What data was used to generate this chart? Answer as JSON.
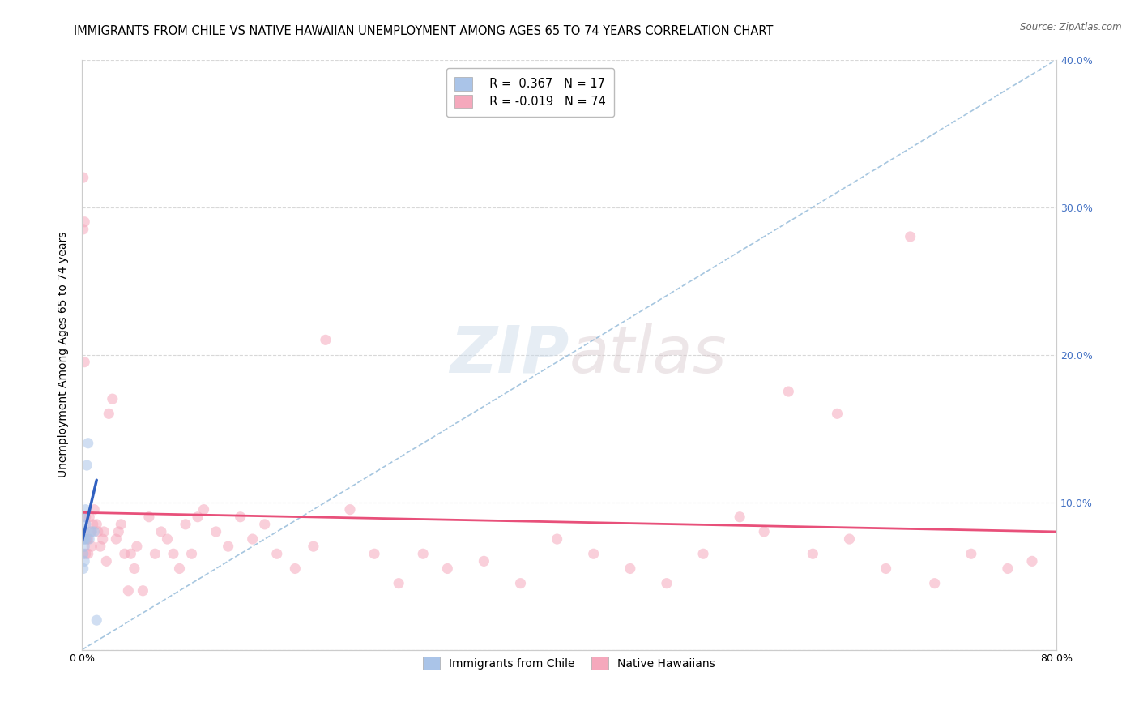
{
  "title": "IMMIGRANTS FROM CHILE VS NATIVE HAWAIIAN UNEMPLOYMENT AMONG AGES 65 TO 74 YEARS CORRELATION CHART",
  "source": "Source: ZipAtlas.com",
  "ylabel": "Unemployment Among Ages 65 to 74 years",
  "xlim": [
    0,
    0.8
  ],
  "ylim": [
    0,
    0.4
  ],
  "xticks": [
    0.0,
    0.1,
    0.2,
    0.3,
    0.4,
    0.5,
    0.6,
    0.7,
    0.8
  ],
  "yticks": [
    0.0,
    0.1,
    0.2,
    0.3,
    0.4
  ],
  "legend_chile_r": "R =  0.367",
  "legend_chile_n": "N = 17",
  "legend_native_r": "R = -0.019",
  "legend_native_n": "N = 74",
  "chile_color": "#aac4e8",
  "native_color": "#f5a8bc",
  "chile_line_color": "#3060c0",
  "native_line_color": "#e8507a",
  "dash_line_color": "#90b8d8",
  "watermark_color": "#d0dce8",
  "background_color": "#ffffff",
  "grid_color": "#d8d8d8",
  "title_fontsize": 10.5,
  "axis_label_fontsize": 10,
  "tick_fontsize": 9,
  "marker_size": 90,
  "marker_alpha": 0.55,
  "chile_x": [
    0.001,
    0.001,
    0.001,
    0.002,
    0.002,
    0.002,
    0.002,
    0.002,
    0.003,
    0.003,
    0.003,
    0.004,
    0.005,
    0.006,
    0.008,
    0.01,
    0.012
  ],
  "chile_y": [
    0.055,
    0.065,
    0.075,
    0.06,
    0.07,
    0.075,
    0.08,
    0.09,
    0.075,
    0.085,
    0.095,
    0.125,
    0.14,
    0.075,
    0.08,
    0.08,
    0.02
  ],
  "native_x": [
    0.001,
    0.001,
    0.002,
    0.002,
    0.003,
    0.003,
    0.004,
    0.005,
    0.005,
    0.006,
    0.007,
    0.008,
    0.009,
    0.01,
    0.012,
    0.013,
    0.015,
    0.017,
    0.018,
    0.02,
    0.022,
    0.025,
    0.028,
    0.03,
    0.032,
    0.035,
    0.038,
    0.04,
    0.043,
    0.045,
    0.05,
    0.055,
    0.06,
    0.065,
    0.07,
    0.075,
    0.08,
    0.085,
    0.09,
    0.095,
    0.1,
    0.11,
    0.12,
    0.13,
    0.14,
    0.15,
    0.16,
    0.175,
    0.19,
    0.2,
    0.22,
    0.24,
    0.26,
    0.28,
    0.3,
    0.33,
    0.36,
    0.39,
    0.42,
    0.45,
    0.48,
    0.51,
    0.54,
    0.56,
    0.6,
    0.63,
    0.66,
    0.7,
    0.73,
    0.76,
    0.58,
    0.62,
    0.68,
    0.78
  ],
  "native_y": [
    0.32,
    0.285,
    0.29,
    0.195,
    0.09,
    0.065,
    0.075,
    0.075,
    0.065,
    0.09,
    0.08,
    0.07,
    0.085,
    0.095,
    0.085,
    0.08,
    0.07,
    0.075,
    0.08,
    0.06,
    0.16,
    0.17,
    0.075,
    0.08,
    0.085,
    0.065,
    0.04,
    0.065,
    0.055,
    0.07,
    0.04,
    0.09,
    0.065,
    0.08,
    0.075,
    0.065,
    0.055,
    0.085,
    0.065,
    0.09,
    0.095,
    0.08,
    0.07,
    0.09,
    0.075,
    0.085,
    0.065,
    0.055,
    0.07,
    0.21,
    0.095,
    0.065,
    0.045,
    0.065,
    0.055,
    0.06,
    0.045,
    0.075,
    0.065,
    0.055,
    0.045,
    0.065,
    0.09,
    0.08,
    0.065,
    0.075,
    0.055,
    0.045,
    0.065,
    0.055,
    0.175,
    0.16,
    0.28,
    0.06
  ],
  "chile_trend_x": [
    0.0,
    0.012
  ],
  "chile_trend_y": [
    0.073,
    0.115
  ],
  "native_trend_x": [
    0.0,
    0.8
  ],
  "native_trend_y": [
    0.093,
    0.08
  ]
}
